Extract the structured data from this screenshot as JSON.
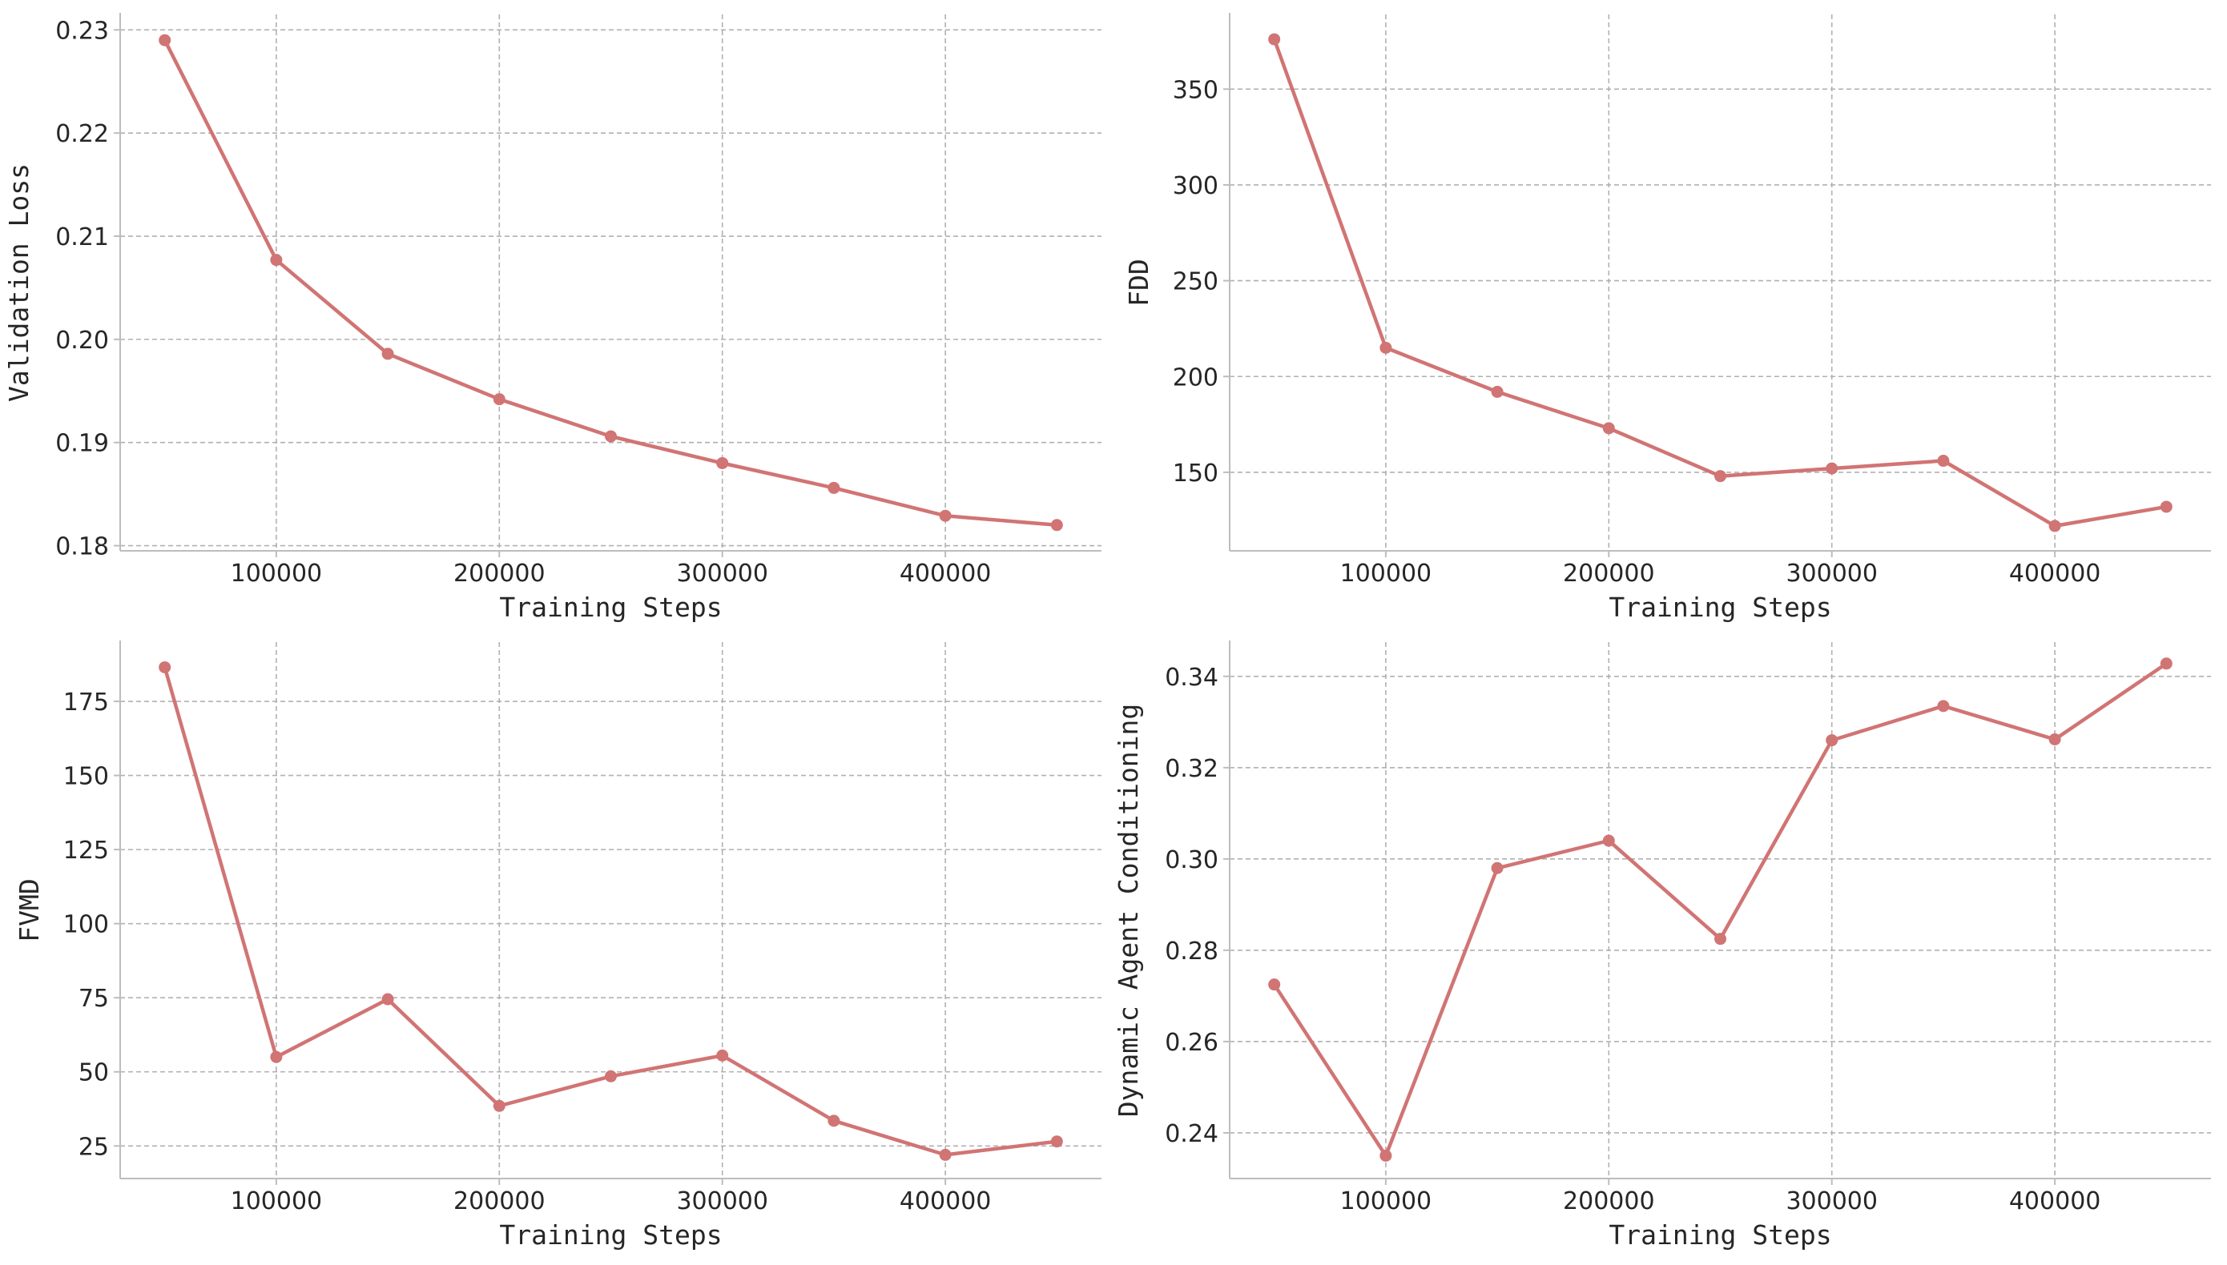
{
  "style": {
    "series_color": "#d17474",
    "grid_color": "#b0b0b0",
    "spine_color": "#bdbdbd",
    "text_color": "#262626"
  },
  "chart_data": [
    {
      "type": "line",
      "title": "",
      "xlabel": "Training Steps",
      "ylabel": "Validation Loss",
      "x": [
        50000,
        100000,
        150000,
        200000,
        250000,
        300000,
        350000,
        400000,
        450000
      ],
      "series": [
        {
          "values": [
            0.229,
            0.2077,
            0.1986,
            0.1942,
            0.1906,
            0.188,
            0.1856,
            0.1829,
            0.182
          ]
        }
      ],
      "xlim": [
        30000,
        470000
      ],
      "ylim": [
        0.1795,
        0.2315
      ],
      "xticks": [
        100000,
        200000,
        300000,
        400000
      ],
      "xtick_labels": [
        "100000",
        "200000",
        "300000",
        "400000"
      ],
      "yticks": [
        0.18,
        0.19,
        0.2,
        0.21,
        0.22,
        0.23
      ],
      "ytick_labels": [
        "0.18",
        "0.19",
        "0.20",
        "0.21",
        "0.22",
        "0.23"
      ],
      "grid": true,
      "markers": true
    },
    {
      "type": "line",
      "title": "",
      "xlabel": "Training Steps",
      "ylabel": "FDD",
      "x": [
        50000,
        100000,
        150000,
        200000,
        250000,
        300000,
        350000,
        400000,
        450000
      ],
      "series": [
        {
          "values": [
            376,
            215,
            192,
            173,
            148,
            152,
            156,
            122,
            132
          ]
        }
      ],
      "xlim": [
        30000,
        470000
      ],
      "ylim": [
        109,
        389
      ],
      "xticks": [
        100000,
        200000,
        300000,
        400000
      ],
      "xtick_labels": [
        "100000",
        "200000",
        "300000",
        "400000"
      ],
      "yticks": [
        150,
        200,
        250,
        300,
        350
      ],
      "ytick_labels": [
        "150",
        "200",
        "250",
        "300",
        "350"
      ],
      "grid": true,
      "markers": true
    },
    {
      "type": "line",
      "title": "",
      "xlabel": "Training Steps",
      "ylabel": "FVMD",
      "x": [
        50000,
        100000,
        150000,
        200000,
        250000,
        300000,
        350000,
        400000,
        450000
      ],
      "series": [
        {
          "values": [
            186.5,
            55.0,
            74.5,
            38.5,
            48.5,
            55.5,
            33.5,
            22.0,
            26.5
          ]
        }
      ],
      "xlim": [
        30000,
        470000
      ],
      "ylim": [
        14,
        195
      ],
      "xticks": [
        100000,
        200000,
        300000,
        400000
      ],
      "xtick_labels": [
        "100000",
        "200000",
        "300000",
        "400000"
      ],
      "yticks": [
        25,
        50,
        75,
        100,
        125,
        150,
        175
      ],
      "ytick_labels": [
        "25",
        "50",
        "75",
        "100",
        "125",
        "150",
        "175"
      ],
      "grid": true,
      "markers": true
    },
    {
      "type": "line",
      "title": "",
      "xlabel": "Training Steps",
      "ylabel": "Dynamic Agent Conditioning",
      "x": [
        50000,
        100000,
        150000,
        200000,
        250000,
        300000,
        350000,
        400000,
        450000
      ],
      "series": [
        {
          "values": [
            0.2725,
            0.235,
            0.298,
            0.304,
            0.2825,
            0.326,
            0.3335,
            0.3262,
            0.3428
          ]
        }
      ],
      "xlim": [
        30000,
        470000
      ],
      "ylim": [
        0.23,
        0.3475
      ],
      "xticks": [
        100000,
        200000,
        300000,
        400000
      ],
      "xtick_labels": [
        "100000",
        "200000",
        "300000",
        "400000"
      ],
      "yticks": [
        0.24,
        0.26,
        0.28,
        0.3,
        0.32,
        0.34
      ],
      "ytick_labels": [
        "0.24",
        "0.26",
        "0.28",
        "0.30",
        "0.32",
        "0.34"
      ],
      "grid": true,
      "markers": true
    }
  ]
}
